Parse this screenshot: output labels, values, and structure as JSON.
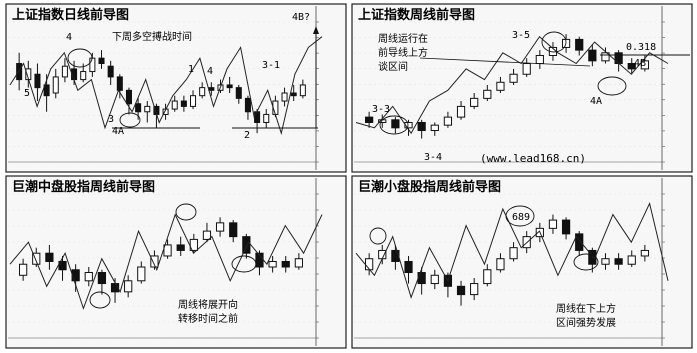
{
  "chart_data": [
    {
      "type": "candlestick",
      "title": "上证指数日线前导图",
      "annotations": {
        "note_line1": "下周多空搏战时间",
        "note_line2": "",
        "top_right": "4B?",
        "marks": [
          "5",
          "4",
          "1",
          "4",
          "3-1",
          "3",
          "2",
          "4A",
          "2"
        ]
      },
      "y_ticks": [
        "",
        "",
        "",
        "",
        "",
        "",
        "",
        "",
        "",
        ""
      ],
      "candles": [
        {
          "o": 36,
          "c": 30,
          "h": 40,
          "l": 26
        },
        {
          "o": 30,
          "c": 34,
          "h": 37,
          "l": 27
        },
        {
          "o": 32,
          "c": 27,
          "h": 36,
          "l": 22
        },
        {
          "o": 28,
          "c": 24,
          "h": 32,
          "l": 18
        },
        {
          "o": 25,
          "c": 31,
          "h": 34,
          "l": 23
        },
        {
          "o": 31,
          "c": 35,
          "h": 38,
          "l": 29
        },
        {
          "o": 34,
          "c": 30,
          "h": 37,
          "l": 28
        },
        {
          "o": 30,
          "c": 33,
          "h": 36,
          "l": 29
        },
        {
          "o": 33,
          "c": 38,
          "h": 40,
          "l": 31
        },
        {
          "o": 38,
          "c": 36,
          "h": 41,
          "l": 34
        },
        {
          "o": 35,
          "c": 31,
          "h": 37,
          "l": 28
        },
        {
          "o": 31,
          "c": 26,
          "h": 32,
          "l": 23
        },
        {
          "o": 26,
          "c": 21,
          "h": 27,
          "l": 17
        },
        {
          "o": 21,
          "c": 18,
          "h": 23,
          "l": 15
        },
        {
          "o": 18,
          "c": 20,
          "h": 22,
          "l": 14
        },
        {
          "o": 20,
          "c": 17,
          "h": 21,
          "l": 12
        },
        {
          "o": 17,
          "c": 19,
          "h": 21,
          "l": 15
        },
        {
          "o": 19,
          "c": 22,
          "h": 24,
          "l": 18
        },
        {
          "o": 22,
          "c": 20,
          "h": 24,
          "l": 18
        },
        {
          "o": 20,
          "c": 24,
          "h": 26,
          "l": 19
        },
        {
          "o": 24,
          "c": 27,
          "h": 29,
          "l": 23
        },
        {
          "o": 27,
          "c": 26,
          "h": 29,
          "l": 24
        },
        {
          "o": 26,
          "c": 28,
          "h": 30,
          "l": 25
        },
        {
          "o": 28,
          "c": 27,
          "h": 31,
          "l": 25
        },
        {
          "o": 27,
          "c": 23,
          "h": 28,
          "l": 21
        },
        {
          "o": 23,
          "c": 18,
          "h": 24,
          "l": 15
        },
        {
          "o": 18,
          "c": 14,
          "h": 19,
          "l": 10
        },
        {
          "o": 14,
          "c": 17,
          "h": 19,
          "l": 12
        },
        {
          "o": 17,
          "c": 22,
          "h": 24,
          "l": 16
        },
        {
          "o": 22,
          "c": 25,
          "h": 27,
          "l": 20
        },
        {
          "o": 25,
          "c": 24,
          "h": 28,
          "l": 22
        },
        {
          "o": 24,
          "c": 28,
          "h": 30,
          "l": 23
        }
      ],
      "wave": [
        28,
        36,
        20,
        34,
        40,
        26,
        30,
        12,
        26,
        18,
        30,
        14,
        24,
        30,
        38,
        20,
        34,
        42,
        16,
        26,
        10,
        32,
        42,
        46
      ],
      "ylim": [
        0,
        50
      ]
    },
    {
      "type": "candlestick",
      "title": "上证指数周线前导图",
      "annotations": {
        "note_line1": "周线运行在",
        "note_line2": "前导线上方",
        "note_line3": "谈区间",
        "top_right": "0.318",
        "marks": [
          "3-5",
          "3-3",
          "3-4",
          "4A",
          "4B"
        ],
        "url": "(www.lead168.cn)"
      },
      "y_ticks": [
        "",
        "",
        "",
        "",
        "",
        "",
        "",
        "",
        "",
        ""
      ],
      "candles": [
        {
          "o": 16,
          "c": 14,
          "h": 18,
          "l": 12
        },
        {
          "o": 14,
          "c": 15,
          "h": 17,
          "l": 12
        },
        {
          "o": 15,
          "c": 12,
          "h": 16,
          "l": 10
        },
        {
          "o": 12,
          "c": 14,
          "h": 15,
          "l": 9
        },
        {
          "o": 14,
          "c": 11,
          "h": 15,
          "l": 8
        },
        {
          "o": 11,
          "c": 13,
          "h": 14,
          "l": 9
        },
        {
          "o": 13,
          "c": 16,
          "h": 18,
          "l": 12
        },
        {
          "o": 16,
          "c": 20,
          "h": 22,
          "l": 15
        },
        {
          "o": 20,
          "c": 23,
          "h": 25,
          "l": 19
        },
        {
          "o": 23,
          "c": 26,
          "h": 28,
          "l": 22
        },
        {
          "o": 26,
          "c": 29,
          "h": 31,
          "l": 25
        },
        {
          "o": 29,
          "c": 32,
          "h": 34,
          "l": 28
        },
        {
          "o": 32,
          "c": 36,
          "h": 38,
          "l": 31
        },
        {
          "o": 36,
          "c": 39,
          "h": 41,
          "l": 34
        },
        {
          "o": 39,
          "c": 42,
          "h": 44,
          "l": 37
        },
        {
          "o": 42,
          "c": 45,
          "h": 47,
          "l": 40
        },
        {
          "o": 45,
          "c": 41,
          "h": 46,
          "l": 39
        },
        {
          "o": 41,
          "c": 37,
          "h": 43,
          "l": 35
        },
        {
          "o": 37,
          "c": 40,
          "h": 42,
          "l": 36
        },
        {
          "o": 40,
          "c": 36,
          "h": 41,
          "l": 33
        },
        {
          "o": 36,
          "c": 34,
          "h": 38,
          "l": 32
        },
        {
          "o": 34,
          "c": 37,
          "h": 39,
          "l": 33
        }
      ],
      "wave": [
        14,
        12,
        20,
        10,
        22,
        26,
        34,
        30,
        40,
        36,
        46,
        40,
        36,
        44,
        38,
        32,
        40,
        36
      ],
      "ylim": [
        0,
        50
      ]
    },
    {
      "type": "candlestick",
      "title": "巨潮中盘股指周线前导图",
      "annotations": {
        "note_line1": "周线将展开向",
        "note_line2": "转移时间之前",
        "marks": []
      },
      "y_ticks": [
        "",
        "",
        "",
        "",
        "",
        "",
        "",
        "",
        "",
        ""
      ],
      "candles": [
        {
          "o": 22,
          "c": 26,
          "h": 28,
          "l": 20
        },
        {
          "o": 26,
          "c": 30,
          "h": 32,
          "l": 25
        },
        {
          "o": 30,
          "c": 27,
          "h": 33,
          "l": 24
        },
        {
          "o": 27,
          "c": 24,
          "h": 29,
          "l": 20
        },
        {
          "o": 24,
          "c": 20,
          "h": 26,
          "l": 16
        },
        {
          "o": 20,
          "c": 23,
          "h": 25,
          "l": 18
        },
        {
          "o": 23,
          "c": 19,
          "h": 24,
          "l": 15
        },
        {
          "o": 19,
          "c": 16,
          "h": 21,
          "l": 12
        },
        {
          "o": 16,
          "c": 20,
          "h": 22,
          "l": 14
        },
        {
          "o": 20,
          "c": 25,
          "h": 27,
          "l": 19
        },
        {
          "o": 25,
          "c": 29,
          "h": 31,
          "l": 24
        },
        {
          "o": 29,
          "c": 33,
          "h": 35,
          "l": 28
        },
        {
          "o": 33,
          "c": 31,
          "h": 36,
          "l": 29
        },
        {
          "o": 31,
          "c": 35,
          "h": 37,
          "l": 30
        },
        {
          "o": 35,
          "c": 38,
          "h": 41,
          "l": 34
        },
        {
          "o": 38,
          "c": 41,
          "h": 43,
          "l": 36
        },
        {
          "o": 41,
          "c": 36,
          "h": 42,
          "l": 34
        },
        {
          "o": 36,
          "c": 30,
          "h": 37,
          "l": 28
        },
        {
          "o": 30,
          "c": 25,
          "h": 31,
          "l": 22
        },
        {
          "o": 25,
          "c": 27,
          "h": 29,
          "l": 23
        },
        {
          "o": 27,
          "c": 25,
          "h": 29,
          "l": 23
        },
        {
          "o": 25,
          "c": 28,
          "h": 30,
          "l": 24
        }
      ],
      "wave": [
        26,
        34,
        18,
        30,
        10,
        28,
        16,
        38,
        24,
        44,
        30,
        36,
        20,
        34,
        26,
        40,
        30,
        44
      ],
      "ylim": [
        0,
        50
      ]
    },
    {
      "type": "candlestick",
      "title": "巨潮小盘股指周线前导图",
      "annotations": {
        "note_line1": "周线在下上方",
        "note_line2": "区间强势发展",
        "marks": [
          "689"
        ]
      },
      "y_ticks": [
        "",
        "",
        "",
        "",
        "",
        "",
        "",
        "",
        "",
        ""
      ],
      "candles": [
        {
          "o": 24,
          "c": 28,
          "h": 30,
          "l": 22
        },
        {
          "o": 28,
          "c": 31,
          "h": 33,
          "l": 26
        },
        {
          "o": 31,
          "c": 27,
          "h": 33,
          "l": 24
        },
        {
          "o": 27,
          "c": 23,
          "h": 29,
          "l": 19
        },
        {
          "o": 23,
          "c": 19,
          "h": 25,
          "l": 15
        },
        {
          "o": 19,
          "c": 22,
          "h": 24,
          "l": 17
        },
        {
          "o": 22,
          "c": 18,
          "h": 23,
          "l": 14
        },
        {
          "o": 18,
          "c": 15,
          "h": 20,
          "l": 11
        },
        {
          "o": 15,
          "c": 19,
          "h": 21,
          "l": 13
        },
        {
          "o": 19,
          "c": 24,
          "h": 26,
          "l": 18
        },
        {
          "o": 24,
          "c": 28,
          "h": 30,
          "l": 23
        },
        {
          "o": 28,
          "c": 32,
          "h": 34,
          "l": 27
        },
        {
          "o": 32,
          "c": 36,
          "h": 38,
          "l": 30
        },
        {
          "o": 36,
          "c": 39,
          "h": 41,
          "l": 34
        },
        {
          "o": 39,
          "c": 42,
          "h": 44,
          "l": 37
        },
        {
          "o": 42,
          "c": 37,
          "h": 43,
          "l": 35
        },
        {
          "o": 37,
          "c": 31,
          "h": 38,
          "l": 29
        },
        {
          "o": 31,
          "c": 26,
          "h": 32,
          "l": 23
        },
        {
          "o": 26,
          "c": 28,
          "h": 30,
          "l": 24
        },
        {
          "o": 28,
          "c": 26,
          "h": 30,
          "l": 24
        },
        {
          "o": 26,
          "c": 29,
          "h": 31,
          "l": 25
        },
        {
          "o": 29,
          "c": 31,
          "h": 33,
          "l": 27
        }
      ],
      "wave": [
        30,
        22,
        36,
        14,
        32,
        20,
        40,
        26,
        46,
        32,
        38,
        22,
        36,
        28,
        44,
        34,
        48,
        20
      ],
      "ylim": [
        0,
        50
      ]
    }
  ]
}
